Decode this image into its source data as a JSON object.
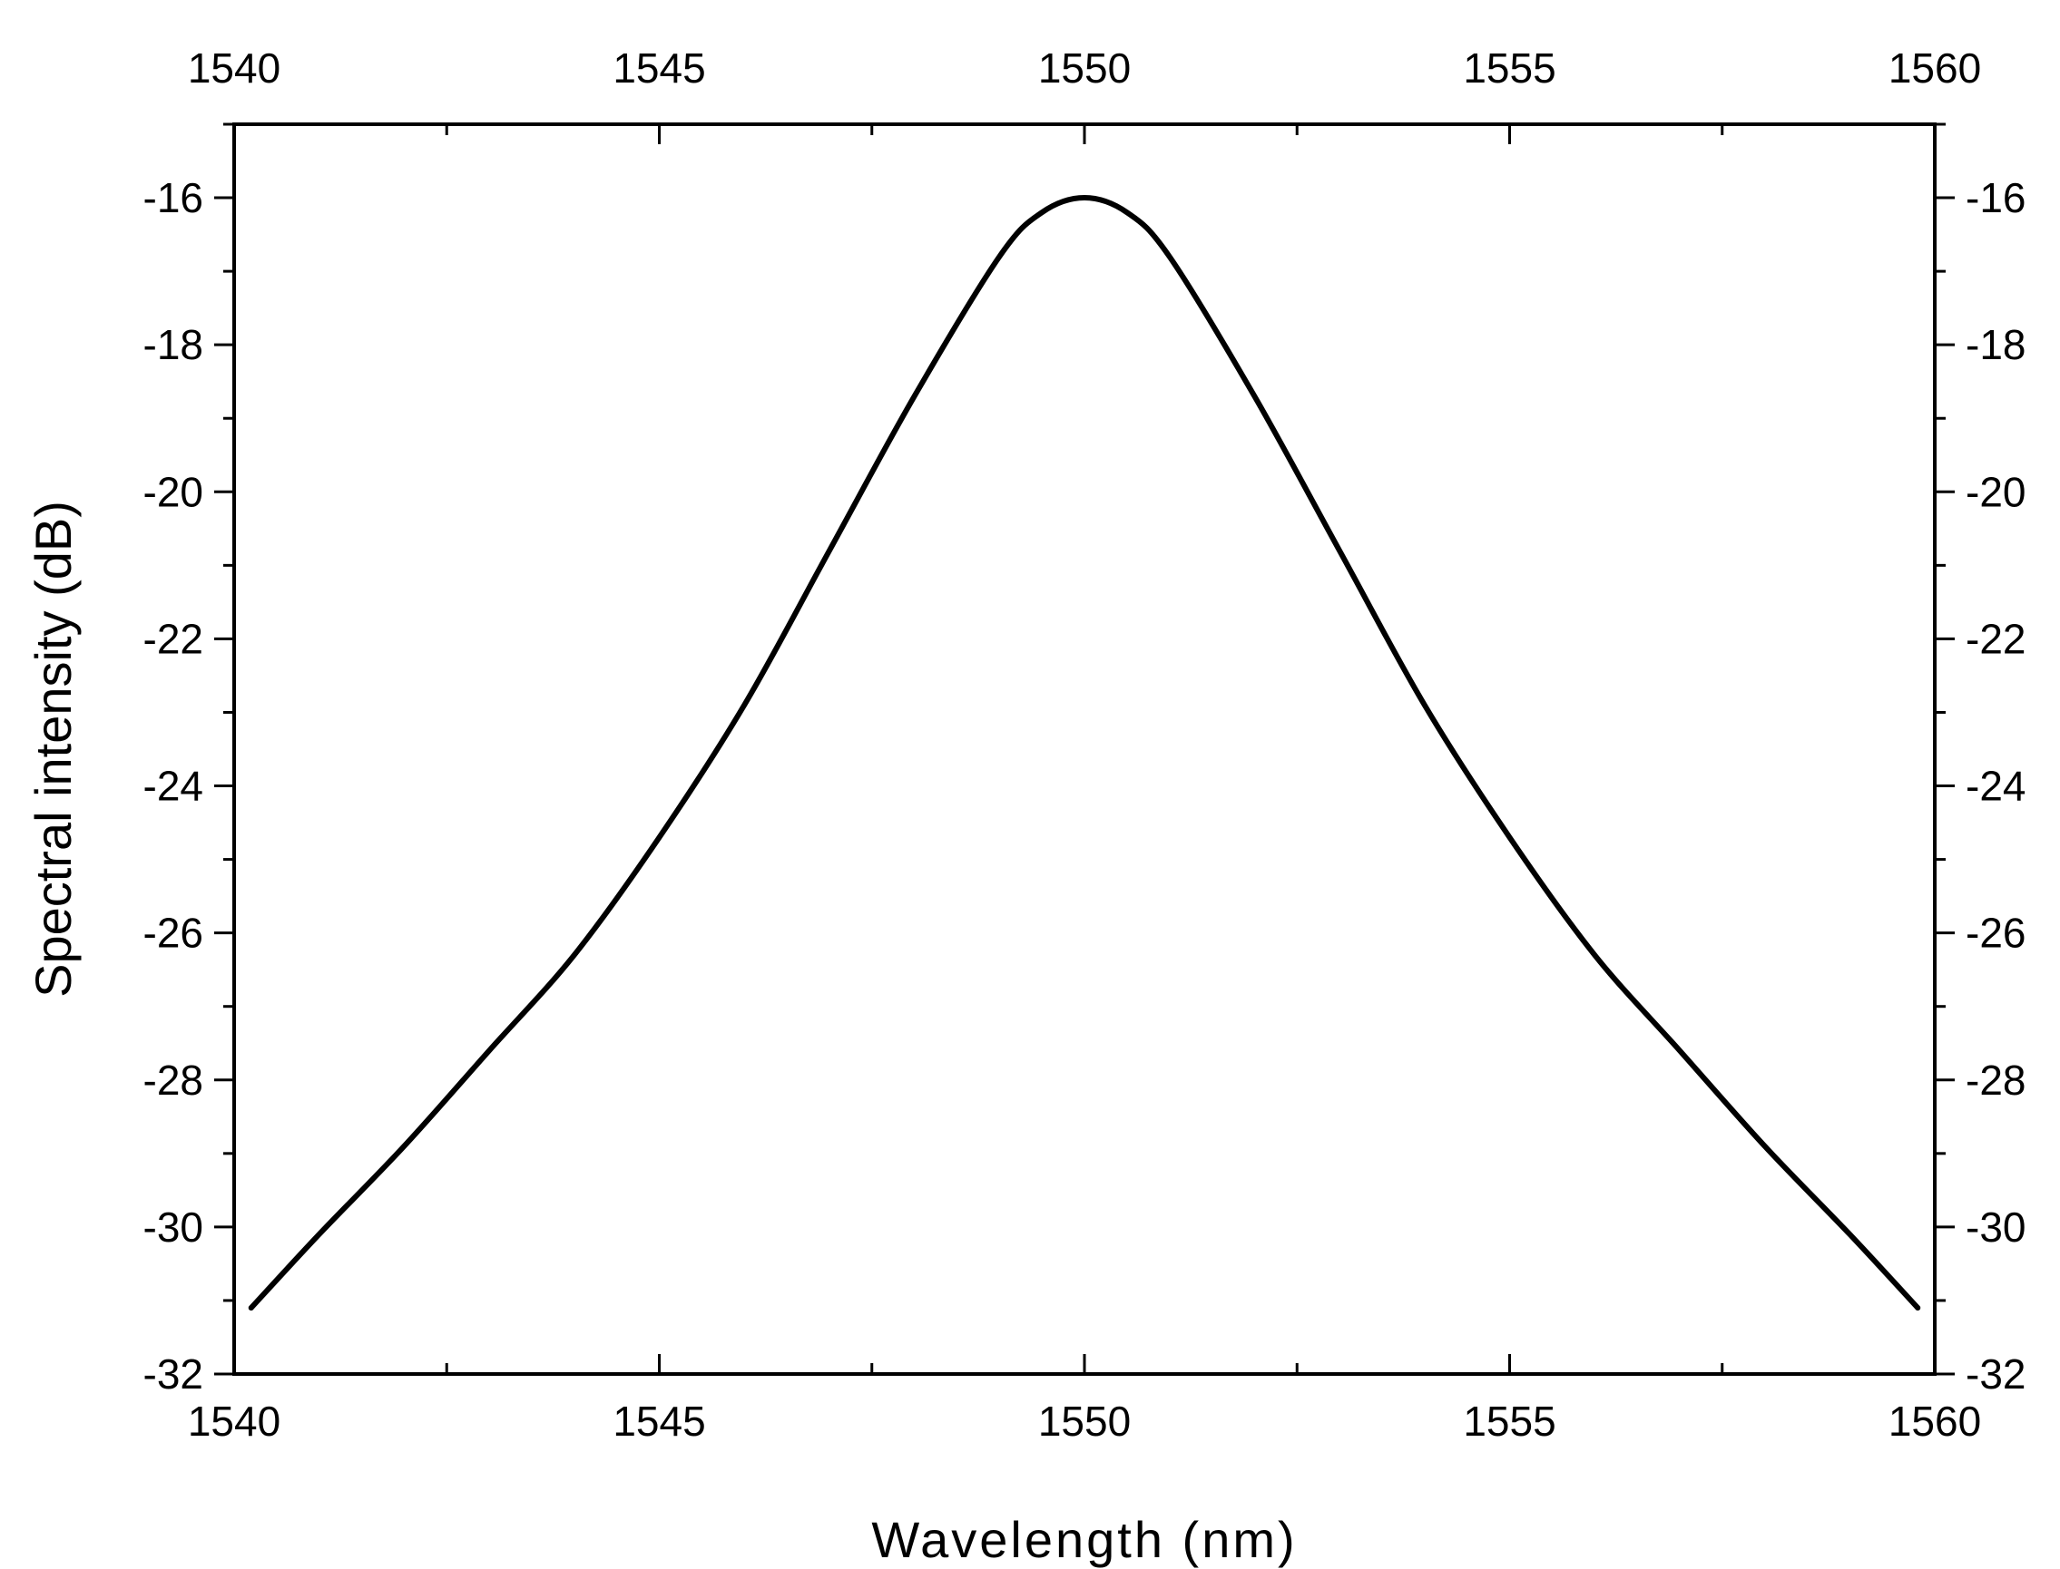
{
  "chart_data": {
    "type": "line",
    "title": "",
    "xlabel": "Wavelength (nm)",
    "ylabel": "Spectral intensity (dB)",
    "xlim": [
      1540,
      1560
    ],
    "ylim": [
      -32,
      -15
    ],
    "x_ticks": [
      1540,
      1545,
      1550,
      1555,
      1560
    ],
    "x_tick_labels": [
      "1540",
      "1545",
      "1550",
      "1555",
      "1560"
    ],
    "y_ticks": [
      -16,
      -18,
      -20,
      -22,
      -24,
      -26,
      -28,
      -30,
      -32
    ],
    "y_tick_labels": [
      "-16",
      "-18",
      "-20",
      "-22",
      "-24",
      "-26",
      "-28",
      "-30",
      "-32"
    ],
    "grid": false,
    "mirror_axes": true,
    "series": [
      {
        "color": "#000000",
        "x": [
          1540.2,
          1541,
          1542,
          1543,
          1544,
          1545,
          1546,
          1547,
          1548,
          1549,
          1549.5,
          1550,
          1550.5,
          1551,
          1552,
          1553,
          1554,
          1555,
          1556,
          1557,
          1558,
          1559,
          1559.8
        ],
        "y": [
          -31.1,
          -30.1,
          -28.9,
          -27.6,
          -26.3,
          -24.7,
          -22.9,
          -20.8,
          -18.7,
          -16.8,
          -16.2,
          -16.0,
          -16.2,
          -16.8,
          -18.7,
          -20.8,
          -22.9,
          -24.7,
          -26.3,
          -27.6,
          -28.9,
          -30.1,
          -31.1
        ]
      }
    ]
  }
}
